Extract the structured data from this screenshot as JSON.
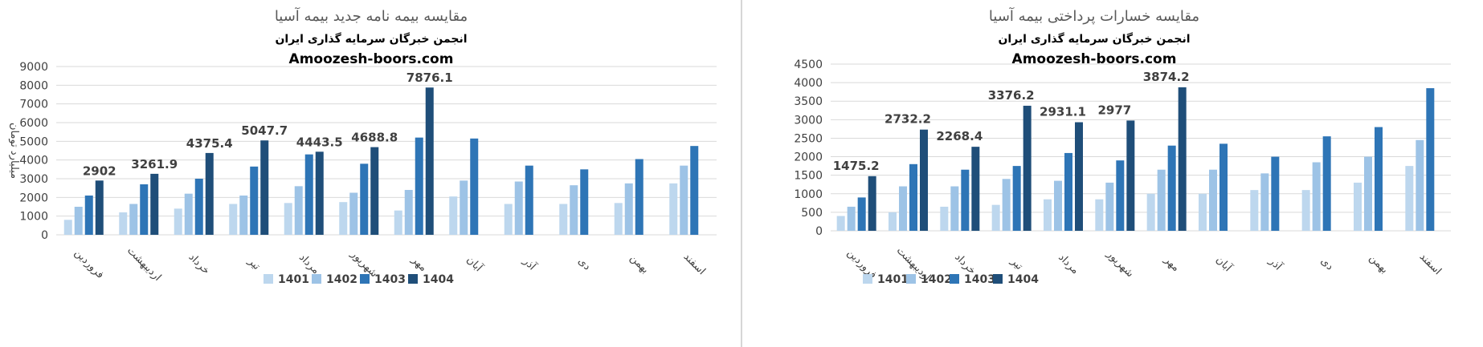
{
  "chart_data": [
    {
      "type": "bar",
      "title": "مقایسه بیمه نامه جدید بیمه آسیا",
      "subtitle": "انجمن خبرگان سرمایه گذاری ایران",
      "site": "Amoozesh-boors.com",
      "ylabel": "میلیارد تومان",
      "xlabel": "",
      "ylim": [
        0,
        9000
      ],
      "yticks": [
        0,
        1000,
        2000,
        3000,
        4000,
        5000,
        6000,
        7000,
        8000,
        9000
      ],
      "grid": true,
      "legend_position": "bottom",
      "categories": [
        "فروردین",
        "اردیبهشت",
        "خرداد",
        "تیر",
        "مرداد",
        "شهریور",
        "مهر",
        "آبان",
        "آذر",
        "دی",
        "بهمن",
        "اسفند"
      ],
      "series": [
        {
          "name": "1401",
          "color": "#bdd7ee",
          "values": [
            800,
            1200,
            1400,
            1650,
            1700,
            1750,
            1300,
            2050,
            1650,
            1650,
            1700,
            2750
          ]
        },
        {
          "name": "1402",
          "color": "#9dc3e6",
          "values": [
            1500,
            1650,
            2200,
            2100,
            2600,
            2250,
            2400,
            2900,
            2850,
            2650,
            2750,
            3700
          ]
        },
        {
          "name": "1403",
          "color": "#2e75b6",
          "values": [
            2100,
            2700,
            3000,
            3650,
            4300,
            3800,
            5200,
            5150,
            3700,
            3500,
            4050,
            4750
          ]
        },
        {
          "name": "1404",
          "color": "#1f4e79",
          "values": [
            2902,
            3261.9,
            4375.4,
            5047.7,
            4443.5,
            4688.8,
            7876.1,
            null,
            null,
            null,
            null,
            null
          ]
        }
      ],
      "data_labels": [
        "2902",
        "3261.9",
        "4375.4",
        "5047.7",
        "4443.5",
        "4688.8",
        "7876.1"
      ]
    },
    {
      "type": "bar",
      "title": "مقایسه خسارات پرداختی بیمه آسیا",
      "subtitle": "انجمن خبرگان سرمایه گذاری ایران",
      "site": "Amoozesh-boors.com",
      "ylabel": "",
      "xlabel": "",
      "ylim": [
        0,
        4500
      ],
      "yticks": [
        0,
        500,
        1000,
        1500,
        2000,
        2500,
        3000,
        3500,
        4000,
        4500
      ],
      "grid": true,
      "legend_position": "bottom",
      "categories": [
        "فروردین",
        "اردیبهشت",
        "خرداد",
        "تیر",
        "مرداد",
        "شهریور",
        "مهر",
        "آبان",
        "آذر",
        "دی",
        "بهمن",
        "اسفند"
      ],
      "series": [
        {
          "name": "1401",
          "color": "#bdd7ee",
          "values": [
            400,
            500,
            650,
            700,
            850,
            850,
            1000,
            1000,
            1100,
            1100,
            1300,
            1750
          ]
        },
        {
          "name": "1402",
          "color": "#9dc3e6",
          "values": [
            650,
            1200,
            1200,
            1400,
            1350,
            1300,
            1650,
            1650,
            1550,
            1850,
            2000,
            2450
          ]
        },
        {
          "name": "1403",
          "color": "#2e75b6",
          "values": [
            900,
            1800,
            1650,
            1750,
            2100,
            1900,
            2300,
            2350,
            2000,
            2550,
            2800,
            3850
          ]
        },
        {
          "name": "1404",
          "color": "#1f4e79",
          "values": [
            1475.2,
            2732.2,
            2268.4,
            3376.2,
            2931.1,
            2977,
            3874.2,
            null,
            null,
            null,
            null,
            null
          ]
        }
      ],
      "data_labels": [
        "1475.2",
        "2732.2",
        "2268.4",
        "3376.2",
        "2931.1",
        "2977",
        "3874.2"
      ]
    }
  ]
}
